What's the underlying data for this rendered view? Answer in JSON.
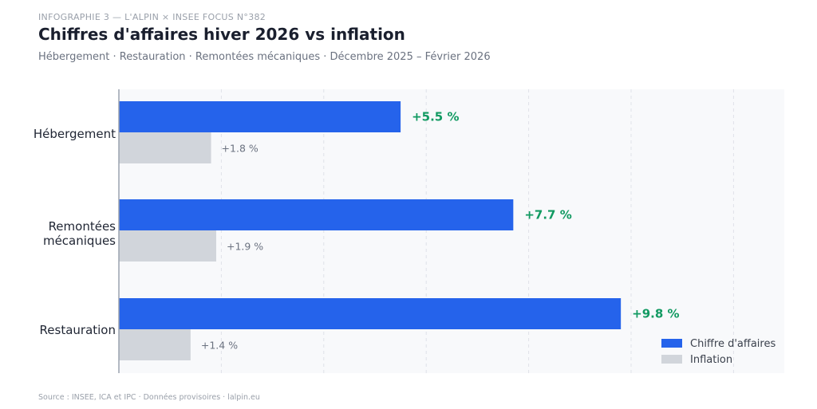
{
  "header": {
    "kicker": "INFOGRAPHIE 3  —  L'ALPIN × INSEE FOCUS N°382",
    "title": "Chiffres d'affaires hiver 2026 vs inflation",
    "subtitle": "Hébergement · Restauration · Remontées mécaniques  ·  Décembre 2025 – Février 2026"
  },
  "footer": {
    "source": "Source : INSEE, ICA et IPC  ·  Données provisoires  ·  lalpin.eu"
  },
  "colors": {
    "revenue": "#2563eb",
    "inflation": "#d1d5db",
    "positive_label": "#129a62",
    "plot_bg": "#f8f9fb",
    "grid": "#dfe2e8",
    "axis": "#9ca3af"
  },
  "chart_data": {
    "type": "bar",
    "orientation": "horizontal",
    "categories": [
      [
        "Hébergement"
      ],
      [
        "Remontées",
        "mécaniques"
      ],
      [
        "Restauration"
      ]
    ],
    "series": [
      {
        "name": "Chiffre d'affaires",
        "values": [
          5.5,
          7.7,
          9.8
        ],
        "labels": [
          "+5.5 %",
          "+7.7 %",
          "+9.8 %"
        ]
      },
      {
        "name": "Inflation",
        "values": [
          1.8,
          1.9,
          1.4
        ],
        "labels": [
          "+1.8 %",
          "+1.9 %",
          "+1.4 %"
        ]
      }
    ],
    "xlim": [
      0,
      13
    ],
    "grid": true,
    "legend": "bottom-right"
  }
}
